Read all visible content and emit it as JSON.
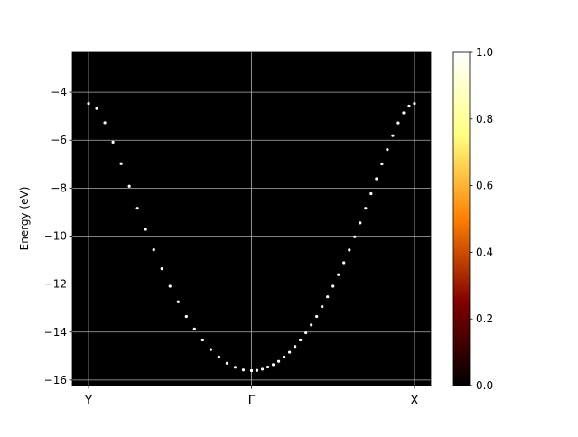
{
  "chart_data": {
    "type": "scatter",
    "title": "",
    "xlabel": "",
    "ylabel": "Energy (eV)",
    "xlim": [
      -0.1,
      2.1
    ],
    "ylim": [
      -16.23,
      -2.34
    ],
    "yticks": [
      -4,
      -6,
      -8,
      -10,
      -12,
      -14,
      -16
    ],
    "ytick_labels": [
      "−4",
      "−6",
      "−8",
      "−10",
      "−12",
      "−14",
      "−16"
    ],
    "xticks": [
      0,
      1,
      2
    ],
    "xtick_labels": [
      "Y",
      "Γ",
      "X"
    ],
    "grid": true,
    "background_color": "#000000",
    "point_color": "#ffffff",
    "series": [
      {
        "segment": "Y-Γ",
        "x_start": 0,
        "x_end": 1,
        "values": [
          -4.47,
          -4.68,
          -5.27,
          -6.08,
          -6.98,
          -7.92,
          -8.84,
          -9.72,
          -10.57,
          -11.36,
          -12.09,
          -12.74,
          -13.35,
          -13.87,
          -14.33,
          -14.73,
          -15.04,
          -15.3,
          -15.47,
          -15.58,
          -15.61
        ]
      },
      {
        "segment": "Γ-X",
        "x_start": 1,
        "x_end": 2,
        "values": [
          -15.61,
          -15.6,
          -15.55,
          -15.46,
          -15.36,
          -15.22,
          -15.04,
          -14.84,
          -14.6,
          -14.33,
          -14.03,
          -13.7,
          -13.35,
          -12.94,
          -12.53,
          -12.09,
          -11.61,
          -11.11,
          -10.58,
          -10.03,
          -9.45,
          -8.84,
          -8.23,
          -7.61,
          -6.99,
          -6.39,
          -5.81,
          -5.28,
          -4.86,
          -4.58,
          -4.47
        ]
      }
    ],
    "colorbar": {
      "colormap": "afmhot",
      "range": [
        0,
        1
      ],
      "ticks": [
        0.0,
        0.2,
        0.4,
        0.6,
        0.8,
        1.0
      ],
      "tick_labels": [
        "0.0",
        "0.2",
        "0.4",
        "0.6",
        "0.8",
        "1.0"
      ]
    }
  }
}
